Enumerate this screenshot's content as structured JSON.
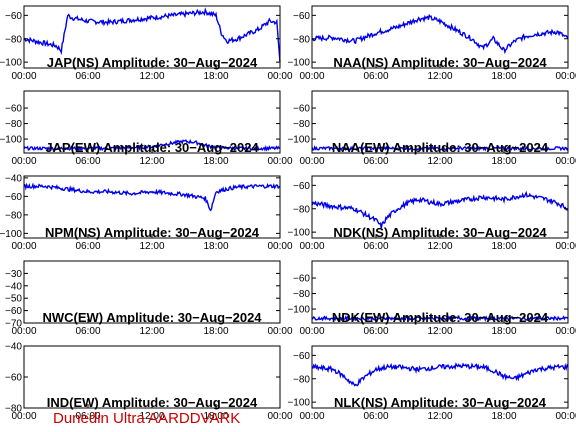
{
  "colors": {
    "trace": "#0000ee",
    "axis": "#000000",
    "footer": "#cc0000",
    "background": "#ffffff"
  },
  "footer": "Dunedin Ultra AARDDVARK",
  "x_ticks": [
    "00:00",
    "06:00",
    "12:00",
    "18:00",
    "00:00"
  ],
  "chart_data": [
    {
      "type": "line",
      "title": "JAP(NS) Amplitude: 30−Aug−2024",
      "ylim": [
        -105,
        -52
      ],
      "y_ticks": [
        "−60",
        "−80",
        "−100"
      ],
      "y_tick_values": [
        -60,
        -80,
        -100
      ],
      "series": [
        {
          "x": [
            0,
            2,
            3,
            3.5,
            4.1,
            4.5,
            6,
            8,
            10,
            12,
            14,
            16,
            17,
            18,
            18.5,
            19,
            20,
            22,
            23,
            23.7,
            24
          ],
          "values": [
            -80,
            -84,
            -86,
            -90,
            -60,
            -62,
            -65,
            -66,
            -64,
            -62,
            -60,
            -58,
            -57,
            -60,
            -75,
            -82,
            -80,
            -72,
            -65,
            -66,
            -100
          ]
        }
      ]
    },
    {
      "type": "line",
      "title": "NAA(NS) Amplitude: 30−Aug−2024",
      "ylim": [
        -105,
        -52
      ],
      "y_ticks": [
        "−60",
        "−80",
        "−100"
      ],
      "y_tick_values": [
        -60,
        -80,
        -100
      ],
      "series": [
        {
          "x": [
            0,
            2,
            4,
            6,
            8,
            10,
            11,
            12,
            13,
            14,
            15,
            16,
            17,
            18,
            19,
            20,
            21,
            22,
            23,
            24
          ],
          "values": [
            -80,
            -79,
            -82,
            -75,
            -70,
            -63,
            -62,
            -65,
            -70,
            -75,
            -80,
            -88,
            -80,
            -90,
            -82,
            -78,
            -76,
            -75,
            -74,
            -80
          ]
        }
      ]
    },
    {
      "type": "line",
      "title": "JAP(EW) Amplitude: 30−Aug−2024",
      "ylim": [
        -118,
        -38
      ],
      "y_ticks": [
        "−60",
        "−80",
        "−100"
      ],
      "y_tick_values": [
        -60,
        -80,
        -100
      ],
      "series": [
        {
          "x": [
            0,
            4,
            8,
            10,
            12,
            13,
            14,
            15,
            16,
            17,
            18,
            20,
            24
          ],
          "values": [
            -112,
            -112,
            -112,
            -111,
            -110,
            -107,
            -105,
            -103,
            -104,
            -108,
            -111,
            -112,
            -112
          ]
        }
      ]
    },
    {
      "type": "line",
      "title": "NAA(EW) Amplitude: 30−Aug−2024",
      "ylim": [
        -118,
        -38
      ],
      "y_ticks": [
        "−60",
        "−80",
        "−100"
      ],
      "y_tick_values": [
        -60,
        -80,
        -100
      ],
      "series": [
        {
          "x": [
            0,
            6,
            12,
            18,
            24
          ],
          "values": [
            -112,
            -112,
            -112,
            -112,
            -112
          ]
        }
      ]
    },
    {
      "type": "line",
      "title": "NPM(NS) Amplitude: 30−Aug−2024",
      "ylim": [
        -105,
        -38
      ],
      "y_ticks": [
        "−40",
        "−60",
        "−80",
        "−100"
      ],
      "y_tick_values": [
        -40,
        -60,
        -80,
        -100
      ],
      "series": [
        {
          "x": [
            0,
            2,
            4,
            6,
            8,
            10,
            12,
            14,
            15,
            16,
            17,
            17.5,
            18,
            19,
            20,
            22,
            24
          ],
          "values": [
            -49,
            -49,
            -52,
            -55,
            -55,
            -57,
            -55,
            -57,
            -58,
            -60,
            -62,
            -75,
            -55,
            -52,
            -50,
            -49,
            -49
          ]
        }
      ]
    },
    {
      "type": "line",
      "title": "NDK(NS) Amplitude: 30−Aug−2024",
      "ylim": [
        -105,
        -52
      ],
      "y_ticks": [
        "−60",
        "−80",
        "−100"
      ],
      "y_tick_values": [
        -60,
        -80,
        -100
      ],
      "series": [
        {
          "x": [
            0,
            2,
            4,
            5,
            6,
            6.5,
            7,
            8,
            9,
            10,
            12,
            14,
            16,
            18,
            19,
            20,
            21,
            22,
            23,
            24
          ],
          "values": [
            -75,
            -78,
            -80,
            -85,
            -90,
            -95,
            -88,
            -80,
            -75,
            -72,
            -76,
            -73,
            -70,
            -72,
            -70,
            -68,
            -70,
            -72,
            -75,
            -80
          ]
        }
      ]
    },
    {
      "type": "line",
      "title": "NWC(EW) Amplitude: 30−Aug−2024",
      "ylim": [
        -70,
        -20
      ],
      "y_ticks": [
        "−30",
        "−40",
        "−50",
        "−60",
        "−70"
      ],
      "y_tick_values": [
        -30,
        -40,
        -50,
        -60,
        -70
      ],
      "series": []
    },
    {
      "type": "line",
      "title": "NDK(EW) Amplitude: 30−Aug−2024",
      "ylim": [
        -118,
        -38
      ],
      "y_ticks": [
        "−60",
        "−80",
        "−100"
      ],
      "y_tick_values": [
        -60,
        -80,
        -100
      ],
      "series": [
        {
          "x": [
            0,
            6,
            12,
            18,
            24
          ],
          "values": [
            -112,
            -112,
            -112,
            -112,
            -112
          ]
        }
      ]
    },
    {
      "type": "line",
      "title": "IND(EW) Amplitude: 30−Aug−2024",
      "ylim": [
        -80,
        -40
      ],
      "y_ticks": [
        "−40",
        "−60",
        "−80"
      ],
      "y_tick_values": [
        -40,
        -60,
        -80
      ],
      "series": []
    },
    {
      "type": "line",
      "title": "NLK(NS) Amplitude: 30−Aug−2024",
      "ylim": [
        -105,
        -52
      ],
      "y_ticks": [
        "−60",
        "−80",
        "−100"
      ],
      "y_tick_values": [
        -60,
        -80,
        -100
      ],
      "series": [
        {
          "x": [
            0,
            1,
            2,
            3,
            4,
            5,
            6,
            7,
            8,
            10,
            12,
            14,
            16,
            17,
            18,
            19,
            20,
            21,
            22,
            23,
            24
          ],
          "values": [
            -70,
            -71,
            -72,
            -78,
            -86,
            -78,
            -72,
            -70,
            -70,
            -72,
            -70,
            -69,
            -70,
            -73,
            -78,
            -80,
            -76,
            -72,
            -71,
            -70,
            -70
          ]
        }
      ]
    }
  ]
}
